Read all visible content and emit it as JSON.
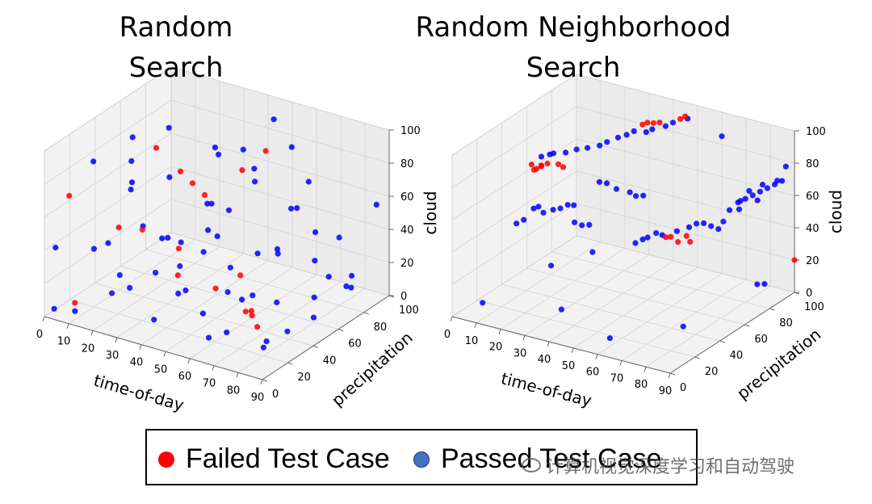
{
  "legend": {
    "failed_label": "Failed Test Case",
    "passed_label": "Passed Test Case",
    "failed_color": "#ff0000",
    "passed_color": "#4472c4"
  },
  "watermark": "计算机视觉深度学习和自动驾驶",
  "chart_data": [
    {
      "type": "scatter",
      "title": "Random Search",
      "xlabel": "time-of-day",
      "ylabel": "precipitation",
      "zlabel": "cloud",
      "xlim": [
        0,
        90
      ],
      "ylim": [
        0,
        100
      ],
      "zlim": [
        0,
        100
      ],
      "xticks": [
        "0",
        "10",
        "20",
        "30",
        "40",
        "50",
        "60",
        "70",
        "80",
        "90"
      ],
      "yticks": [
        "0",
        "20",
        "40",
        "60",
        "80",
        "100"
      ],
      "zticks": [
        "0",
        "20",
        "40",
        "60",
        "80",
        "100"
      ],
      "grid": true,
      "series": [
        {
          "name": "Failed Test Case",
          "color": "#ff0000",
          "points": [
            [
              5,
              10,
              70
            ],
            [
              20,
              50,
              85
            ],
            [
              15,
              30,
              45
            ],
            [
              30,
              50,
              75
            ],
            [
              35,
              50,
              70
            ],
            [
              40,
              50,
              65
            ],
            [
              30,
              20,
              55
            ],
            [
              45,
              70,
              72
            ],
            [
              45,
              20,
              50
            ],
            [
              60,
              60,
              95
            ],
            [
              55,
              30,
              25
            ],
            [
              70,
              25,
              20
            ],
            [
              70,
              30,
              15
            ],
            [
              75,
              20,
              25
            ],
            [
              80,
              15,
              20
            ],
            [
              60,
              40,
              30
            ],
            [
              10,
              5,
              10
            ],
            [
              42,
              25,
              30
            ]
          ]
        },
        {
          "name": "Passed Test Case",
          "color": "#0000ff",
          "points": [
            [
              2,
              5,
              40
            ],
            [
              3,
              2,
              5
            ],
            [
              10,
              20,
              35
            ],
            [
              10,
              5,
              5
            ],
            [
              15,
              10,
              95
            ],
            [
              15,
              40,
              80
            ],
            [
              20,
              30,
              70
            ],
            [
              20,
              60,
              92
            ],
            [
              10,
              50,
              60
            ],
            [
              25,
              60,
              25
            ],
            [
              25,
              30,
              50
            ],
            [
              30,
              80,
              70
            ],
            [
              30,
              40,
              40
            ],
            [
              35,
              90,
              70
            ],
            [
              35,
              40,
              25
            ],
            [
              40,
              60,
              35
            ],
            [
              40,
              10,
              10
            ],
            [
              45,
              80,
              60
            ],
            [
              50,
              70,
              75
            ],
            [
              50,
              50,
              60
            ],
            [
              50,
              30,
              45
            ],
            [
              55,
              20,
              15
            ],
            [
              60,
              80,
              50
            ],
            [
              60,
              30,
              25
            ],
            [
              65,
              60,
              35
            ],
            [
              65,
              40,
              20
            ],
            [
              70,
              50,
              45
            ],
            [
              70,
              10,
              15
            ],
            [
              75,
              70,
              30
            ],
            [
              75,
              40,
              20
            ],
            [
              80,
              60,
              15
            ],
            [
              80,
              20,
              5
            ],
            [
              85,
              80,
              20
            ],
            [
              85,
              50,
              10
            ],
            [
              90,
              90,
              60
            ],
            [
              88,
              70,
              20
            ],
            [
              55,
              90,
              80
            ],
            [
              45,
              95,
              90
            ],
            [
              30,
              10,
              25
            ],
            [
              20,
              15,
              15
            ],
            [
              60,
              15,
              5
            ],
            [
              40,
              35,
              15
            ],
            [
              65,
              75,
              55
            ],
            [
              25,
              45,
              35
            ],
            [
              50,
              10,
              30
            ],
            [
              35,
              65,
              50
            ],
            [
              15,
              70,
              55
            ],
            [
              70,
              80,
              40
            ],
            [
              82,
              35,
              8
            ],
            [
              58,
              45,
              12
            ],
            [
              48,
              55,
              22
            ],
            [
              38,
              15,
              35
            ],
            [
              28,
              75,
              42
            ],
            [
              18,
              25,
              20
            ],
            [
              8,
              35,
              30
            ],
            [
              62,
              90,
              62
            ],
            [
              72,
              95,
              30
            ],
            [
              76,
              30,
              2
            ],
            [
              44,
              45,
              48
            ],
            [
              54,
              65,
              28
            ],
            [
              86,
              60,
              30
            ],
            [
              90,
              70,
              20
            ],
            [
              5,
              60,
              80
            ],
            [
              26,
              85,
              70
            ]
          ]
        }
      ]
    },
    {
      "type": "scatter",
      "title": "Random Neighborhood Search",
      "xlabel": "time-of-day",
      "ylabel": "precipitation",
      "zlabel": "cloud",
      "xlim": [
        0,
        90
      ],
      "ylim": [
        0,
        100
      ],
      "zlim": [
        0,
        100
      ],
      "xticks": [
        "0",
        "10",
        "20",
        "30",
        "40",
        "50",
        "60",
        "70",
        "80",
        "90"
      ],
      "yticks": [
        "0",
        "20",
        "40",
        "60",
        "80",
        "100"
      ],
      "zticks": [
        "0",
        "20",
        "40",
        "60",
        "80",
        "100"
      ],
      "grid": true,
      "series": [
        {
          "name": "Failed Test Case",
          "color": "#ff0000",
          "points": [
            [
              2,
              60,
              65
            ],
            [
              3,
              60,
              62
            ],
            [
              4,
              60,
              63
            ],
            [
              5,
              62,
              64
            ],
            [
              6,
              60,
              66
            ],
            [
              7,
              63,
              66
            ],
            [
              12,
              62,
              68
            ],
            [
              14,
              62,
              67
            ],
            [
              35,
              85,
              90
            ],
            [
              37,
              85,
              92
            ],
            [
              39,
              86,
              92
            ],
            [
              42,
              85,
              94
            ],
            [
              48,
              90,
              96
            ],
            [
              49,
              92,
              97
            ],
            [
              60,
              55,
              45
            ],
            [
              62,
              55,
              46
            ],
            [
              65,
              55,
              44
            ],
            [
              67,
              58,
              47
            ],
            [
              70,
              55,
              46
            ],
            [
              90,
              100,
              20
            ]
          ]
        },
        {
          "name": "Passed Test Case",
          "color": "#0000ff",
          "points": [
            [
              5,
              62,
              70
            ],
            [
              8,
              63,
              72
            ],
            [
              10,
              62,
              74
            ],
            [
              14,
              64,
              75
            ],
            [
              18,
              65,
              78
            ],
            [
              22,
              66,
              80
            ],
            [
              26,
              68,
              82
            ],
            [
              28,
              70,
              84
            ],
            [
              32,
              78,
              86
            ],
            [
              30,
              75,
              85
            ],
            [
              34,
              80,
              88
            ],
            [
              38,
              82,
              88
            ],
            [
              40,
              83,
              90
            ],
            [
              44,
              86,
              92
            ],
            [
              46,
              88,
              94
            ],
            [
              50,
              92,
              96
            ],
            [
              8,
              50,
              45
            ],
            [
              10,
              50,
              47
            ],
            [
              12,
              50,
              44
            ],
            [
              15,
              52,
              46
            ],
            [
              18,
              52,
              48
            ],
            [
              20,
              54,
              50
            ],
            [
              22,
              55,
              50
            ],
            [
              6,
              40,
              40
            ],
            [
              8,
              42,
              42
            ],
            [
              30,
              60,
              65
            ],
            [
              32,
              62,
              64
            ],
            [
              36,
              62,
              62
            ],
            [
              40,
              65,
              60
            ],
            [
              42,
              66,
              58
            ],
            [
              44,
              68,
              58
            ],
            [
              30,
              40,
              50
            ],
            [
              32,
              42,
              48
            ],
            [
              34,
              44,
              48
            ],
            [
              50,
              50,
              40
            ],
            [
              52,
              52,
              42
            ],
            [
              54,
              52,
              44
            ],
            [
              56,
              55,
              46
            ],
            [
              58,
              56,
              45
            ],
            [
              62,
              60,
              47
            ],
            [
              66,
              62,
              50
            ],
            [
              68,
              64,
              52
            ],
            [
              70,
              66,
              52
            ],
            [
              72,
              68,
              50
            ],
            [
              74,
              70,
              48
            ],
            [
              75,
              72,
              52
            ],
            [
              76,
              75,
              58
            ],
            [
              78,
              78,
              62
            ],
            [
              80,
              80,
              64
            ],
            [
              82,
              82,
              66
            ],
            [
              84,
              84,
              68
            ],
            [
              86,
              86,
              70
            ],
            [
              88,
              88,
              72
            ],
            [
              90,
              90,
              74
            ],
            [
              79,
              85,
              66
            ],
            [
              83,
              88,
              70
            ],
            [
              87,
              92,
              72
            ],
            [
              80,
              75,
              60
            ],
            [
              85,
              80,
              65
            ],
            [
              89,
              95,
              80
            ],
            [
              60,
              100,
              85
            ],
            [
              40,
              35,
              38
            ],
            [
              10,
              5,
              10
            ],
            [
              40,
              10,
              15
            ],
            [
              80,
              30,
              10
            ],
            [
              90,
              70,
              20
            ],
            [
              92,
              72,
              20
            ],
            [
              60,
              10,
              5
            ],
            [
              78,
              80,
              62
            ],
            [
              28,
              25,
              30
            ]
          ]
        }
      ]
    }
  ]
}
